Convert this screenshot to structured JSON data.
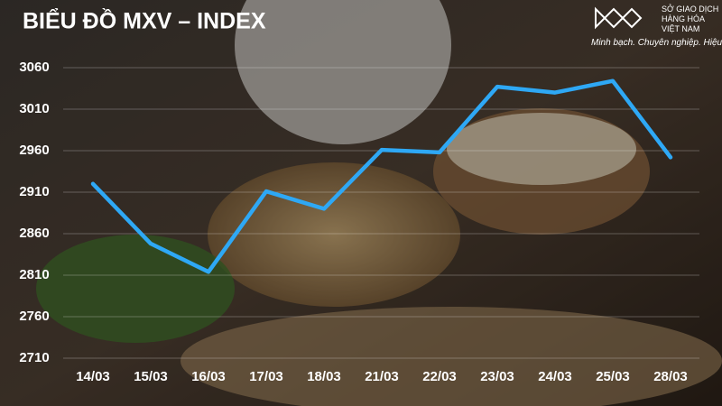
{
  "chart_data": {
    "type": "line",
    "title": "BIỂU ĐỒ MXV – INDEX",
    "categories": [
      "14/03",
      "15/03",
      "16/03",
      "17/03",
      "18/03",
      "21/03",
      "22/03",
      "23/03",
      "24/03",
      "25/03",
      "28/03"
    ],
    "series": [
      {
        "color": "#2ea8f5",
        "values": [
          2920,
          2848,
          2814,
          2911,
          2890,
          2961,
          2958,
          3037,
          3030,
          3044,
          2952
        ]
      }
    ],
    "ylim": [
      2710,
      3060
    ],
    "yticks": [
      2710,
      2760,
      2810,
      2860,
      2910,
      2960,
      3010,
      3060
    ],
    "grid": true
  },
  "logo": {
    "lines": [
      "SỞ GIAO DỊCH",
      "HÀNG HÓA",
      "VIỆT NAM"
    ],
    "tagline": "Minh bạch. Chuyên nghiệp. Hiệu quả"
  }
}
